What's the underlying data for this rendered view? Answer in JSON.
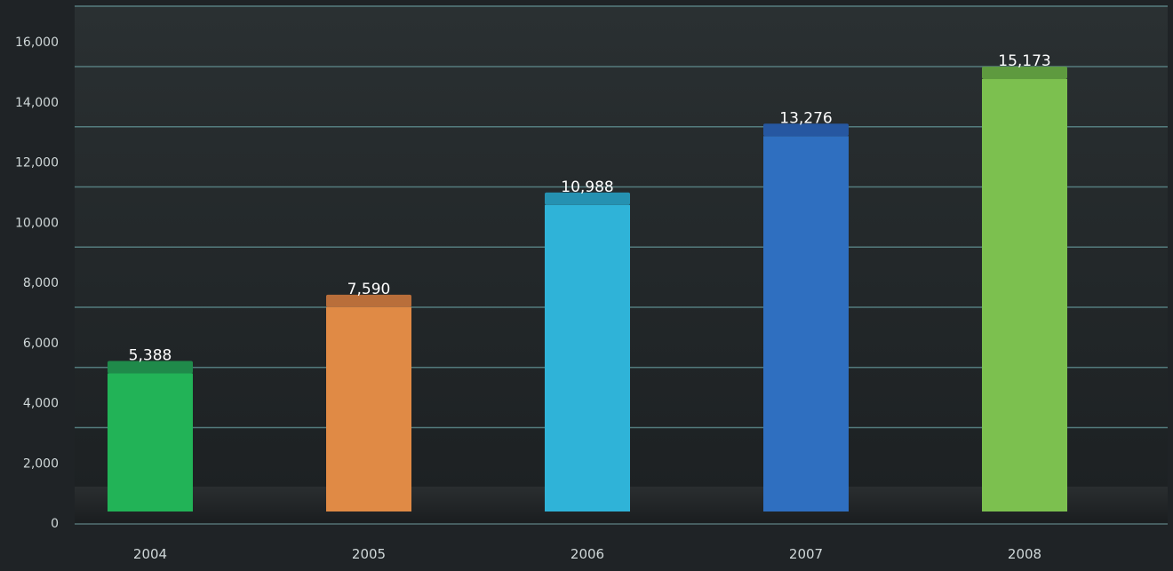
{
  "chart_data": {
    "type": "bar",
    "categories": [
      "2004",
      "2005",
      "2006",
      "2007",
      "2008"
    ],
    "values": [
      5388,
      7590,
      10988,
      13276,
      15173
    ],
    "value_labels": [
      "5,388",
      "7,590",
      "10,988",
      "13,276",
      "15,173"
    ],
    "bar_colors": [
      "#22b357",
      "#e08a45",
      "#2fb3d8",
      "#2f6fc0",
      "#7cc04f"
    ],
    "bar_cap_colors": [
      "#1f8a4a",
      "#b96e3a",
      "#2591b1",
      "#2657a1",
      "#5e9a3f"
    ],
    "title": "",
    "xlabel": "",
    "ylabel": "",
    "ylim": [
      0,
      16000
    ],
    "yticks": [
      0,
      2000,
      4000,
      6000,
      8000,
      10000,
      12000,
      14000,
      16000
    ],
    "ytick_labels": [
      "0",
      "2,000",
      "4,000",
      "6,000",
      "8,000",
      "10,000",
      "12,000",
      "14,000",
      "16,000"
    ],
    "grid": true,
    "legend": "none",
    "colors": {
      "background": "#1f2326",
      "plot_background": "#25292c",
      "gridline": "#5d8a8c",
      "axis_text": "#cfd7d8",
      "value_text": "#ffffff"
    }
  }
}
